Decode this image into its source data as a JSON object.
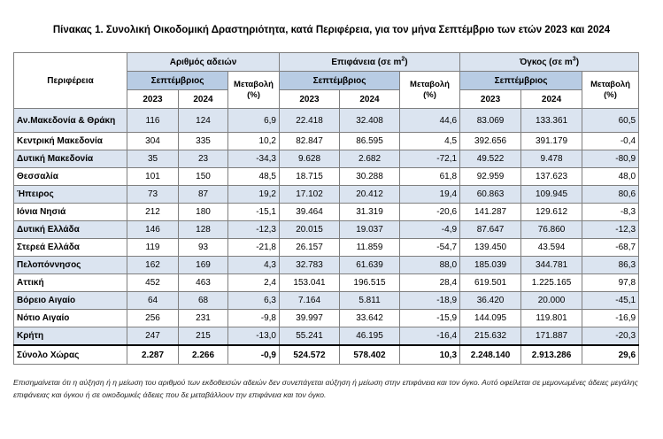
{
  "title": "Πίνακας 1. Συνολική Οικοδομική Δραστηριότητα, κατά  Περιφέρεια, για τον μήνα Σεπτέμβριο των ετών 2023 και 2024",
  "headers": {
    "region": "Περιφέρεια",
    "permits": "Αριθμός αδειών",
    "area": "Επιφάνεια (σε m",
    "area_sup": "2",
    "volume": "Όγκος (σε m",
    "volume_sup": "3",
    "close_paren": ")",
    "month": "Σεπτέμβριος",
    "change": "Μεταβολή",
    "change_unit": "(%)",
    "year_a": "2023",
    "year_b": "2024"
  },
  "rows": [
    {
      "region": "Αν.Μακεδονία & Θράκη",
      "p23": "116",
      "p24": "124",
      "pchg": "6,9",
      "a23": "22.418",
      "a24": "32.408",
      "achg": "44,6",
      "v23": "83.069",
      "v24": "133.361",
      "vchg": "60,5"
    },
    {
      "region": "Κεντρική Μακεδονία",
      "p23": "304",
      "p24": "335",
      "pchg": "10,2",
      "a23": "82.847",
      "a24": "86.595",
      "achg": "4,5",
      "v23": "392.656",
      "v24": "391.179",
      "vchg": "-0,4"
    },
    {
      "region": "Δυτική Μακεδονία",
      "p23": "35",
      "p24": "23",
      "pchg": "-34,3",
      "a23": "9.628",
      "a24": "2.682",
      "achg": "-72,1",
      "v23": "49.522",
      "v24": "9.478",
      "vchg": "-80,9"
    },
    {
      "region": "Θεσσαλία",
      "p23": "101",
      "p24": "150",
      "pchg": "48,5",
      "a23": "18.715",
      "a24": "30.288",
      "achg": "61,8",
      "v23": "92.959",
      "v24": "137.623",
      "vchg": "48,0"
    },
    {
      "region": "Ήπειρος",
      "p23": "73",
      "p24": "87",
      "pchg": "19,2",
      "a23": "17.102",
      "a24": "20.412",
      "achg": "19,4",
      "v23": "60.863",
      "v24": "109.945",
      "vchg": "80,6"
    },
    {
      "region": "Ιόνια Νησιά",
      "p23": "212",
      "p24": "180",
      "pchg": "-15,1",
      "a23": "39.464",
      "a24": "31.319",
      "achg": "-20,6",
      "v23": "141.287",
      "v24": "129.612",
      "vchg": "-8,3"
    },
    {
      "region": "Δυτική Ελλάδα",
      "p23": "146",
      "p24": "128",
      "pchg": "-12,3",
      "a23": "20.015",
      "a24": "19.037",
      "achg": "-4,9",
      "v23": "87.647",
      "v24": "76.860",
      "vchg": "-12,3"
    },
    {
      "region": "Στερεά Ελλάδα",
      "p23": "119",
      "p24": "93",
      "pchg": "-21,8",
      "a23": "26.157",
      "a24": "11.859",
      "achg": "-54,7",
      "v23": "139.450",
      "v24": "43.594",
      "vchg": "-68,7"
    },
    {
      "region": "Πελοπόννησος",
      "p23": "162",
      "p24": "169",
      "pchg": "4,3",
      "a23": "32.783",
      "a24": "61.639",
      "achg": "88,0",
      "v23": "185.039",
      "v24": "344.781",
      "vchg": "86,3"
    },
    {
      "region": "Αττική",
      "p23": "452",
      "p24": "463",
      "pchg": "2,4",
      "a23": "153.041",
      "a24": "196.515",
      "achg": "28,4",
      "v23": "619.501",
      "v24": "1.225.165",
      "vchg": "97,8"
    },
    {
      "region": "Βόρειο Αιγαίο",
      "p23": "64",
      "p24": "68",
      "pchg": "6,3",
      "a23": "7.164",
      "a24": "5.811",
      "achg": "-18,9",
      "v23": "36.420",
      "v24": "20.000",
      "vchg": "-45,1"
    },
    {
      "region": "Νότιο Αιγαίο",
      "p23": "256",
      "p24": "231",
      "pchg": "-9,8",
      "a23": "39.997",
      "a24": "33.642",
      "achg": "-15,9",
      "v23": "144.095",
      "v24": "119.801",
      "vchg": "-16,9"
    },
    {
      "region": "Κρήτη",
      "p23": "247",
      "p24": "215",
      "pchg": "-13,0",
      "a23": "55.241",
      "a24": "46.195",
      "achg": "-16,4",
      "v23": "215.632",
      "v24": "171.887",
      "vchg": "-20,3"
    }
  ],
  "total": {
    "region": "Σύνολο Χώρας",
    "p23": "2.287",
    "p24": "2.266",
    "pchg": "-0,9",
    "a23": "524.572",
    "a24": "578.402",
    "achg": "10,3",
    "v23": "2.248.140",
    "v24": "2.913.286",
    "vchg": "29,6"
  },
  "note": "Επισημαίνεται ότι η αύξηση ή η μείωση του αριθμού των εκδοθεισών αδειών δεν συνεπάγεται αύξηση ή μείωση στην επιφάνεια και τον όγκο. Αυτό οφείλεται σε μεμονωμένες άδειες μεγάλης επιφάνειας και όγκου ή σε οικοδομικές άδειες που δε μεταβάλλουν την επιφάνεια και τον όγκο."
}
